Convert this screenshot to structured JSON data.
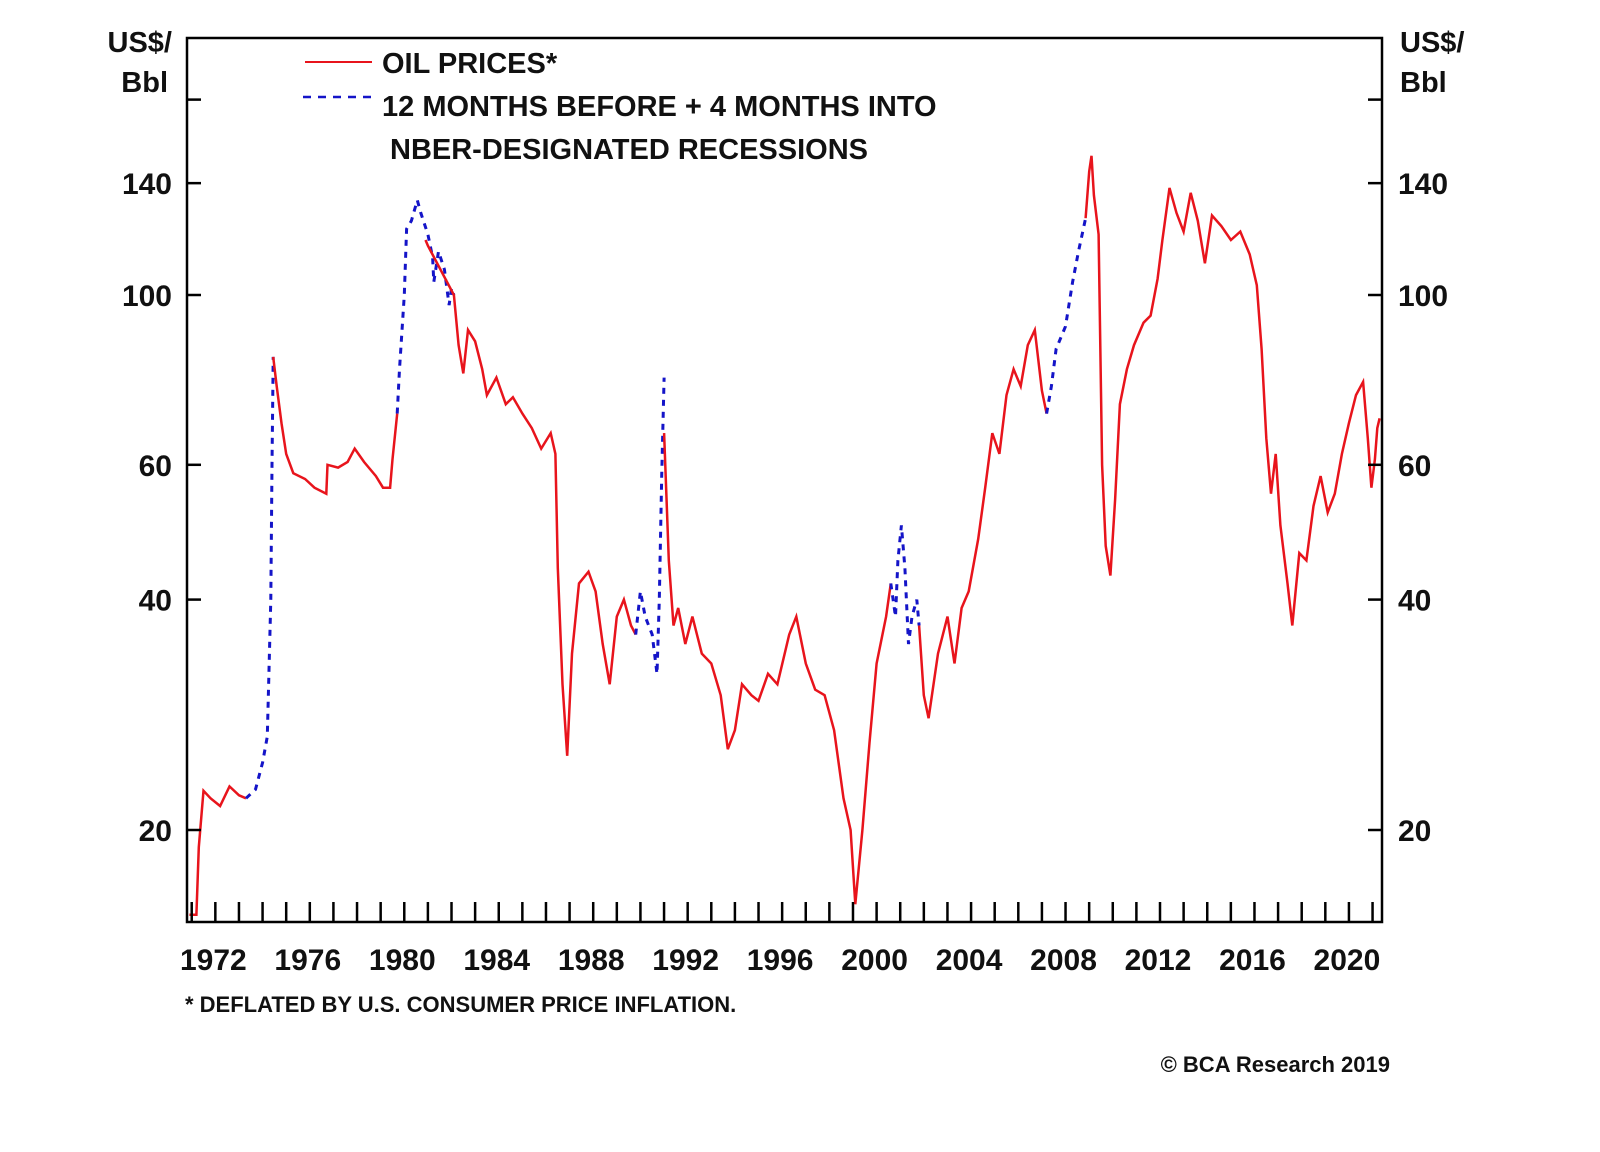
{
  "chart_data": {
    "type": "line",
    "title": "",
    "xlabel": "",
    "ylabel_left": [
      "US$/",
      "Bbl"
    ],
    "ylabel_right": [
      "US$/",
      "Bbl"
    ],
    "y_scale": "log",
    "ylim": [
      15,
      210
    ],
    "xlim": [
      1970.8,
      2021.4
    ],
    "y_ticks": [
      20,
      40,
      60,
      100,
      140,
      180
    ],
    "y_tick_labels": [
      "20",
      "40",
      "60",
      "100",
      "140",
      ""
    ],
    "x_tick_labels": [
      "1972",
      "1976",
      "1980",
      "1984",
      "1988",
      "1992",
      "1996",
      "2000",
      "2004",
      "2008",
      "2012",
      "2016",
      "2020"
    ],
    "x_tick_years": [
      1972,
      1976,
      1980,
      1984,
      1988,
      1992,
      1996,
      2000,
      2004,
      2008,
      2012,
      2016,
      2020
    ],
    "x_minor_tick_interval_years": 1,
    "grid": false,
    "legend": {
      "placement": "top-left",
      "entries": [
        {
          "label": "OIL PRICES*",
          "style": "solid",
          "color": "#e8141c"
        },
        {
          "label": "12 MONTHS BEFORE + 4 MONTHS INTO",
          "label_line2": "NBER-DESIGNATED RECESSIONS",
          "style": "dashed",
          "color": "#1414c8"
        }
      ]
    },
    "footnote": "* DEFLATED BY U.S. CONSUMER PRICE INFLATION.",
    "credit": "© BCA Research 2019",
    "series": [
      {
        "name": "OIL PRICES*",
        "color": "#e8141c",
        "points": [
          [
            1970.9,
            15.5
          ],
          [
            1971.2,
            15.5
          ],
          [
            1971.3,
            19
          ],
          [
            1971.5,
            22.5
          ],
          [
            1971.8,
            22
          ],
          [
            1972.2,
            21.5
          ],
          [
            1972.6,
            22.8
          ],
          [
            1973.0,
            22.2
          ],
          [
            1973.3,
            22
          ]
        ]
      },
      {
        "name": "12 MONTHS BEFORE + 4 MONTHS INTO NBER-DESIGNATED RECESSIONS",
        "color": "#1414c8",
        "points": [
          [
            1973.3,
            22
          ],
          [
            1973.7,
            22.6
          ],
          [
            1974.0,
            24.5
          ],
          [
            1974.2,
            26.5
          ],
          [
            1974.35,
            40
          ],
          [
            1974.4,
            60
          ],
          [
            1974.45,
            83
          ]
        ]
      },
      {
        "name": "OIL PRICES*",
        "color": "#e8141c",
        "points": [
          [
            1974.45,
            83
          ],
          [
            1974.6,
            76
          ],
          [
            1974.8,
            68
          ],
          [
            1975.0,
            62
          ],
          [
            1975.3,
            58.5
          ],
          [
            1975.8,
            57.5
          ],
          [
            1976.2,
            56
          ],
          [
            1976.7,
            55
          ],
          [
            1976.75,
            60
          ],
          [
            1977.2,
            59.5
          ],
          [
            1977.6,
            60.5
          ],
          [
            1977.9,
            63
          ],
          [
            1978.3,
            60.5
          ],
          [
            1978.8,
            58
          ],
          [
            1979.1,
            56
          ],
          [
            1979.4,
            56
          ],
          [
            1979.5,
            61
          ],
          [
            1979.7,
            70
          ]
        ]
      },
      {
        "name": "12 MONTHS BEFORE + 4 MONTHS INTO NBER-DESIGNATED RECESSIONS",
        "color": "#1414c8",
        "points": [
          [
            1979.7,
            70
          ],
          [
            1979.8,
            80
          ],
          [
            1980.0,
            100
          ],
          [
            1980.1,
            122
          ],
          [
            1980.3,
            125
          ],
          [
            1980.55,
            133
          ],
          [
            1980.7,
            128
          ],
          [
            1981.0,
            120
          ],
          [
            1981.2,
            112
          ],
          [
            1981.25,
            104
          ],
          [
            1981.45,
            114
          ],
          [
            1981.7,
            108
          ],
          [
            1981.9,
            97
          ],
          [
            1982.0,
            102
          ],
          [
            1982.1,
            100
          ]
        ]
      },
      {
        "name": "OIL PRICES*",
        "color": "#e8141c",
        "points": [
          [
            1980.9,
            118
          ],
          [
            1981.0,
            116
          ],
          [
            1982.1,
            100
          ],
          [
            1982.3,
            86
          ],
          [
            1982.5,
            79
          ],
          [
            1982.7,
            90
          ],
          [
            1983.0,
            87
          ],
          [
            1983.3,
            80
          ],
          [
            1983.5,
            74
          ],
          [
            1983.9,
            78
          ],
          [
            1984.3,
            72
          ],
          [
            1984.6,
            73.5
          ],
          [
            1985.0,
            70
          ],
          [
            1985.4,
            67
          ],
          [
            1985.8,
            63
          ],
          [
            1986.2,
            66
          ],
          [
            1986.4,
            62
          ],
          [
            1986.5,
            44
          ],
          [
            1986.7,
            31
          ],
          [
            1986.9,
            25
          ],
          [
            1987.1,
            34
          ],
          [
            1987.4,
            42
          ],
          [
            1987.8,
            43.5
          ],
          [
            1988.1,
            41
          ],
          [
            1988.4,
            35
          ],
          [
            1988.7,
            31
          ],
          [
            1989.0,
            38
          ],
          [
            1989.3,
            40
          ],
          [
            1989.6,
            37
          ],
          [
            1989.8,
            36
          ]
        ]
      },
      {
        "name": "12 MONTHS BEFORE + 4 MONTHS INTO NBER-DESIGNATED RECESSIONS",
        "color": "#1414c8",
        "points": [
          [
            1989.8,
            36
          ],
          [
            1990.0,
            41
          ],
          [
            1990.2,
            38
          ],
          [
            1990.5,
            36
          ],
          [
            1990.7,
            32
          ],
          [
            1990.8,
            40
          ],
          [
            1990.9,
            58
          ],
          [
            1991.0,
            78
          ]
        ]
      },
      {
        "name": "OIL PRICES*",
        "color": "#e8141c",
        "points": [
          [
            1991.0,
            66
          ],
          [
            1991.2,
            45
          ],
          [
            1991.4,
            37
          ],
          [
            1991.6,
            39
          ],
          [
            1991.9,
            35
          ],
          [
            1992.2,
            38
          ],
          [
            1992.6,
            34
          ],
          [
            1993.0,
            33
          ],
          [
            1993.4,
            30
          ],
          [
            1993.7,
            25.5
          ],
          [
            1994.0,
            27
          ],
          [
            1994.3,
            31
          ],
          [
            1994.7,
            30
          ],
          [
            1995.0,
            29.5
          ],
          [
            1995.4,
            32
          ],
          [
            1995.8,
            31
          ],
          [
            1996.3,
            36
          ],
          [
            1996.6,
            38
          ],
          [
            1997.0,
            33
          ],
          [
            1997.4,
            30.5
          ],
          [
            1997.8,
            30
          ],
          [
            1998.2,
            27
          ],
          [
            1998.6,
            22
          ],
          [
            1998.9,
            20
          ],
          [
            1999.1,
            16
          ],
          [
            1999.4,
            20
          ],
          [
            1999.7,
            26
          ],
          [
            2000.0,
            33
          ],
          [
            2000.4,
            38
          ],
          [
            2000.6,
            42
          ]
        ]
      },
      {
        "name": "12 MONTHS BEFORE + 4 MONTHS INTO NBER-DESIGNATED RECESSIONS",
        "color": "#1414c8",
        "points": [
          [
            2000.6,
            42
          ],
          [
            2000.8,
            38
          ],
          [
            2000.9,
            45
          ],
          [
            2001.05,
            50
          ],
          [
            2001.2,
            44
          ],
          [
            2001.35,
            35
          ],
          [
            2001.5,
            38
          ],
          [
            2001.7,
            40
          ],
          [
            2001.8,
            37
          ]
        ]
      },
      {
        "name": "OIL PRICES*",
        "color": "#e8141c",
        "points": [
          [
            2001.8,
            37
          ],
          [
            2002.0,
            30
          ],
          [
            2002.2,
            28
          ],
          [
            2002.6,
            34
          ],
          [
            2003.0,
            38
          ],
          [
            2003.3,
            33
          ],
          [
            2003.6,
            39
          ],
          [
            2003.9,
            41
          ],
          [
            2004.3,
            48
          ],
          [
            2004.6,
            56
          ],
          [
            2004.9,
            66
          ],
          [
            2005.2,
            62
          ],
          [
            2005.5,
            74
          ],
          [
            2005.8,
            80
          ],
          [
            2006.1,
            76
          ],
          [
            2006.4,
            86
          ],
          [
            2006.7,
            90
          ],
          [
            2007.0,
            75
          ],
          [
            2007.2,
            70
          ]
        ]
      },
      {
        "name": "12 MONTHS BEFORE + 4 MONTHS INTO NBER-DESIGNATED RECESSIONS",
        "color": "#1414c8",
        "points": [
          [
            2007.2,
            70
          ],
          [
            2007.4,
            76
          ],
          [
            2007.6,
            85
          ],
          [
            2008.0,
            91
          ],
          [
            2008.3,
            104
          ],
          [
            2008.55,
            114
          ],
          [
            2008.85,
            126
          ]
        ]
      },
      {
        "name": "OIL PRICES*",
        "color": "#e8141c",
        "points": [
          [
            2008.85,
            126
          ],
          [
            2009.0,
            145
          ],
          [
            2009.1,
            152
          ],
          [
            2009.2,
            135
          ],
          [
            2009.4,
            120
          ],
          [
            2009.55,
            60
          ],
          [
            2009.7,
            47
          ],
          [
            2009.9,
            43
          ],
          [
            2010.1,
            54
          ],
          [
            2010.3,
            72
          ],
          [
            2010.6,
            80
          ],
          [
            2010.9,
            86
          ],
          [
            2011.3,
            92
          ],
          [
            2011.6,
            94
          ],
          [
            2011.9,
            105
          ],
          [
            2012.1,
            118
          ],
          [
            2012.4,
            138
          ],
          [
            2012.7,
            128
          ],
          [
            2013.0,
            121
          ],
          [
            2013.3,
            136
          ],
          [
            2013.6,
            125
          ],
          [
            2013.9,
            110
          ],
          [
            2014.2,
            127
          ],
          [
            2014.6,
            123
          ],
          [
            2015.0,
            118
          ],
          [
            2015.4,
            121
          ],
          [
            2015.8,
            113
          ],
          [
            2016.1,
            103
          ],
          [
            2016.3,
            85
          ],
          [
            2016.5,
            65
          ],
          [
            2016.7,
            55
          ],
          [
            2016.9,
            62
          ],
          [
            2017.1,
            50
          ],
          [
            2017.4,
            42
          ],
          [
            2017.6,
            37
          ],
          [
            2017.9,
            46
          ],
          [
            2018.2,
            45
          ],
          [
            2018.5,
            53
          ],
          [
            2018.8,
            58
          ],
          [
            2019.1,
            52
          ],
          [
            2019.4,
            55
          ],
          [
            2019.7,
            62
          ],
          [
            2020.0,
            68
          ],
          [
            2020.3,
            74
          ],
          [
            2020.6,
            77
          ],
          [
            2020.8,
            65
          ],
          [
            2020.95,
            56
          ],
          [
            2021.1,
            61
          ],
          [
            2021.2,
            67
          ],
          [
            2021.3,
            69
          ]
        ]
      }
    ]
  }
}
